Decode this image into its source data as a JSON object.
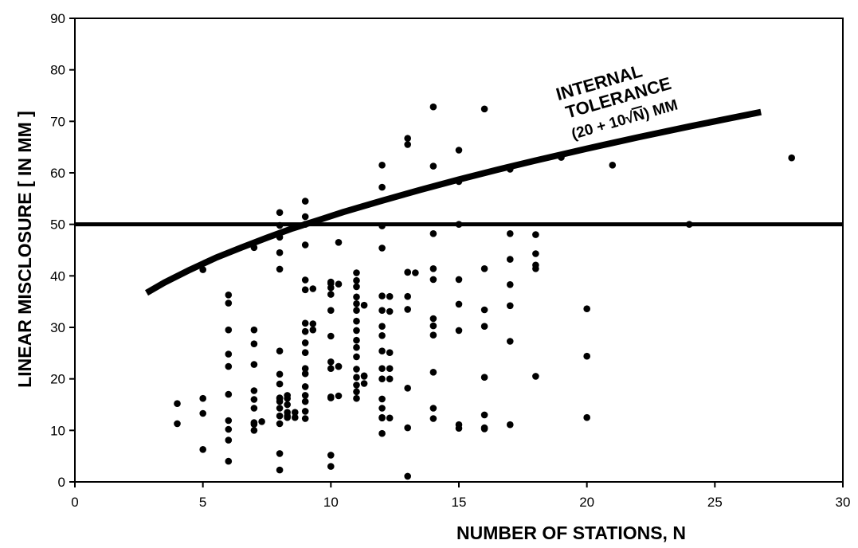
{
  "chart_data": {
    "type": "scatter",
    "title": "",
    "xlabel": "NUMBER  OF  STATIONS, N",
    "ylabel": "LINEAR MISCLOSURE [ IN MM ]",
    "xlim": [
      0,
      30
    ],
    "ylim": [
      0,
      90
    ],
    "xticks": [
      0,
      5,
      10,
      15,
      20,
      25,
      30
    ],
    "yticks": [
      0,
      10,
      20,
      30,
      40,
      50,
      60,
      70,
      80,
      90
    ],
    "grid": false,
    "legend": "none",
    "annotation": {
      "line1": "INTERNAL",
      "line2": "TOLERANCE",
      "formula_prefix": "(20 + 10",
      "formula_radicand": "N",
      "formula_suffix": ") MM"
    },
    "reference_line": {
      "y": 50
    },
    "tolerance_curve": {
      "x": [
        2.8,
        3.5,
        4.5,
        5.5,
        6.5,
        7.5,
        8.5,
        9.5,
        10.5,
        12,
        13.5,
        15,
        16.5,
        18,
        20,
        22,
        24,
        25.5,
        26.8
      ],
      "y": [
        36.7,
        38.7,
        41.2,
        43.5,
        45.5,
        47.4,
        49.2,
        50.8,
        52.4,
        54.6,
        56.7,
        58.7,
        60.6,
        62.4,
        64.7,
        66.9,
        69.0,
        70.5,
        71.8
      ]
    },
    "series": [
      {
        "x": [
          4,
          4,
          5,
          5,
          5,
          5,
          6,
          6,
          6,
          6,
          6,
          6,
          6,
          6,
          6,
          6,
          7,
          7,
          7,
          7,
          7,
          7,
          7,
          7,
          7,
          7,
          7.3,
          8,
          8,
          8,
          8,
          8,
          8,
          8,
          8,
          8,
          8,
          8,
          8,
          8,
          8,
          8,
          8,
          8.3,
          8.3,
          8.3,
          8.3,
          8.3,
          8.3,
          8.6,
          8.6,
          9,
          9,
          9,
          9,
          9,
          9,
          9,
          9,
          9,
          9,
          9,
          9,
          9,
          9,
          9,
          9,
          9,
          9.3,
          9.3,
          9.3,
          10,
          10,
          10,
          10,
          10,
          10,
          10,
          10,
          10,
          10,
          10,
          10,
          10.3,
          10.3,
          10.3,
          10.3,
          10.3,
          11,
          11,
          11,
          11,
          11,
          11,
          11,
          11,
          11,
          11,
          11,
          11,
          11,
          11,
          11,
          11,
          11.3,
          11.3,
          11.3,
          11.3,
          12,
          12,
          12,
          12,
          12,
          12,
          12,
          12,
          12,
          12,
          12,
          12,
          12,
          12,
          12,
          12,
          12.3,
          12.3,
          12.3,
          12.3,
          12.3,
          12.3,
          13,
          13,
          13,
          13,
          13,
          13,
          13,
          13,
          13,
          13.3,
          14,
          14,
          14,
          14,
          14,
          14,
          14,
          14,
          14,
          14,
          14,
          15,
          15,
          15,
          15,
          15,
          15,
          15,
          15,
          16,
          16,
          16,
          16,
          16,
          16,
          16,
          16,
          17,
          17,
          17,
          17,
          17,
          17,
          17,
          18,
          18,
          18,
          18,
          18,
          19,
          20,
          20,
          20,
          21,
          24,
          28
        ],
        "y": [
          15.2,
          11.3,
          41.2,
          16.2,
          13.3,
          6.3,
          36.3,
          34.7,
          29.5,
          24.8,
          22.4,
          11.9,
          10.2,
          8.1,
          4.0,
          17.0,
          45.5,
          29.5,
          26.8,
          22.8,
          17.7,
          16.0,
          14.3,
          11.5,
          10.0,
          11.2,
          11.7,
          52.3,
          49.8,
          47.5,
          44.5,
          41.3,
          25.4,
          20.9,
          19.0,
          16.2,
          15.6,
          14.3,
          12.8,
          11.3,
          5.5,
          2.3,
          16.3,
          16.2,
          15.0,
          13.5,
          12.5,
          12.8,
          16.8,
          13.5,
          12.5,
          54.5,
          51.5,
          50.0,
          46.0,
          39.2,
          37.3,
          30.8,
          29.2,
          27.0,
          25.1,
          22.0,
          21.0,
          18.5,
          16.8,
          15.6,
          13.7,
          12.3,
          37.5,
          30.7,
          29.5,
          38.8,
          37.7,
          36.4,
          33.3,
          28.3,
          23.3,
          22.0,
          16.3,
          5.2,
          3.0,
          16.5,
          38.5,
          38.4,
          22.4,
          16.7,
          22.4,
          46.5,
          40.6,
          39.1,
          37.9,
          35.9,
          34.6,
          33.3,
          31.2,
          29.4,
          27.5,
          26.1,
          24.3,
          21.9,
          20.3,
          18.8,
          17.5,
          16.2,
          34.3,
          20.5,
          19.1,
          20.6,
          61.5,
          57.2,
          49.7,
          45.4,
          36.1,
          33.3,
          30.2,
          28.4,
          25.4,
          22.0,
          20.0,
          16.1,
          14.3,
          12.5,
          9.4,
          12.4,
          36.0,
          33.1,
          25.1,
          22.0,
          20.0,
          12.4,
          66.7,
          65.5,
          40.7,
          36.0,
          33.5,
          18.2,
          10.5,
          1.1,
          40.7,
          40.6,
          72.8,
          48.2,
          41.4,
          39.3,
          31.7,
          30.3,
          28.5,
          21.3,
          14.3,
          12.3,
          61.3,
          58.3,
          50.0,
          39.3,
          34.5,
          29.4,
          11.1,
          10.4,
          64.4,
          41.4,
          33.4,
          30.2,
          20.3,
          13.0,
          10.3,
          10.5,
          72.4,
          60.7,
          43.2,
          38.3,
          34.2,
          27.3,
          11.1,
          48.2,
          44.3,
          42.1,
          20.5,
          48.0,
          41.4,
          63.0,
          33.6,
          24.4,
          12.5,
          61.5,
          50.0,
          62.9
        ]
      }
    ]
  }
}
